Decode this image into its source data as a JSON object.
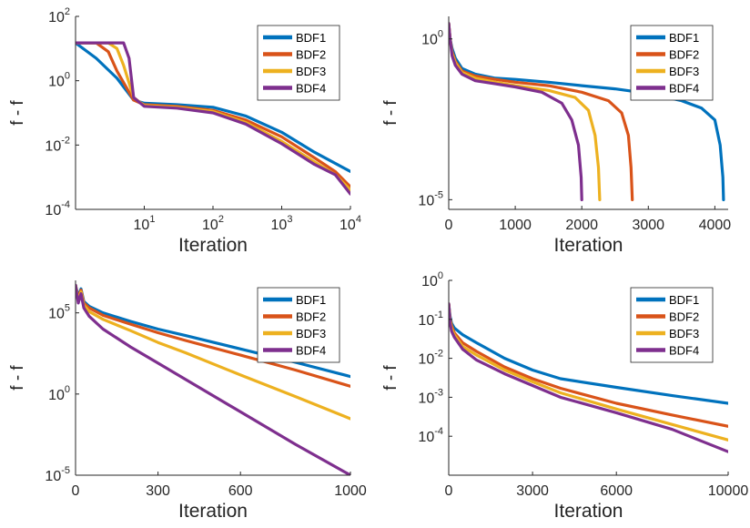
{
  "colors": {
    "BDF1": "#0072BD",
    "BDF2": "#D95319",
    "BDF3": "#EDB120",
    "BDF4": "#7E2F8E"
  },
  "chart_data": [
    {
      "type": "line",
      "xscale": "log",
      "yscale": "log",
      "xlabel": "Iteration",
      "ylabel": "f - f",
      "xlim": [
        1,
        10000
      ],
      "ylim": [
        0.0001,
        100
      ],
      "xticks": [
        {
          "v": 10,
          "base": "10",
          "exp": "1"
        },
        {
          "v": 100,
          "base": "10",
          "exp": "2"
        },
        {
          "v": 1000,
          "base": "10",
          "exp": "3"
        },
        {
          "v": 10000,
          "base": "10",
          "exp": "4"
        }
      ],
      "yticks": [
        {
          "v": 100,
          "base": "10",
          "exp": "2"
        },
        {
          "v": 1,
          "base": "10",
          "exp": "0"
        },
        {
          "v": 0.01,
          "base": "10",
          "exp": "-2"
        },
        {
          "v": 0.0001,
          "base": "10",
          "exp": "-4"
        }
      ],
      "legend": "top-right",
      "series": [
        {
          "name": "BDF1",
          "x": [
            1,
            2,
            4,
            7,
            10,
            30,
            100,
            300,
            1000,
            3000,
            10000
          ],
          "y": [
            15,
            5,
            1.2,
            0.25,
            0.2,
            0.18,
            0.15,
            0.08,
            0.025,
            0.006,
            0.0015
          ]
        },
        {
          "name": "BDF2",
          "x": [
            1,
            2,
            3,
            4,
            7,
            10,
            30,
            100,
            300,
            1000,
            3000,
            6000,
            10000
          ],
          "y": [
            15,
            15,
            8,
            2,
            0.25,
            0.18,
            0.16,
            0.12,
            0.06,
            0.018,
            0.004,
            0.0015,
            0.0005
          ]
        },
        {
          "name": "BDF3",
          "x": [
            1,
            2,
            3,
            4,
            5,
            7,
            10,
            30,
            100,
            300,
            1000,
            3000,
            6000,
            10000
          ],
          "y": [
            15,
            15,
            15,
            10,
            3,
            0.3,
            0.17,
            0.15,
            0.11,
            0.05,
            0.013,
            0.003,
            0.0012,
            0.0004
          ]
        },
        {
          "name": "BDF4",
          "x": [
            1,
            2,
            3,
            4,
            5,
            6,
            7,
            10,
            30,
            100,
            300,
            1000,
            3000,
            6000,
            10000
          ],
          "y": [
            15,
            15,
            15,
            15,
            15,
            5,
            0.3,
            0.16,
            0.14,
            0.1,
            0.045,
            0.011,
            0.0025,
            0.0012,
            0.0003
          ]
        }
      ]
    },
    {
      "type": "line",
      "xscale": "linear",
      "yscale": "log",
      "xlabel": "Iteration",
      "ylabel": "f - f",
      "xlim": [
        0,
        4200
      ],
      "ylim": [
        5e-06,
        5
      ],
      "xticks": [
        {
          "v": 0,
          "label": "0"
        },
        {
          "v": 1000,
          "label": "1000"
        },
        {
          "v": 2000,
          "label": "2000"
        },
        {
          "v": 3000,
          "label": "3000"
        },
        {
          "v": 4000,
          "label": "4000"
        }
      ],
      "yticks": [
        {
          "v": 1,
          "base": "10",
          "exp": "0"
        },
        {
          "v": 1e-05,
          "base": "10",
          "exp": "-5"
        }
      ],
      "legend": "top-right",
      "series": [
        {
          "name": "BDF1",
          "x": [
            0,
            20,
            50,
            100,
            200,
            400,
            700,
            1000,
            1500,
            2000,
            2500,
            3000,
            3500,
            3800,
            4000,
            4080,
            4120,
            4130
          ],
          "y": [
            3,
            1,
            0.5,
            0.25,
            0.12,
            0.08,
            0.06,
            0.055,
            0.045,
            0.035,
            0.028,
            0.02,
            0.012,
            0.007,
            0.003,
            0.0005,
            5e-05,
            1e-05
          ]
        },
        {
          "name": "BDF2",
          "x": [
            0,
            20,
            50,
            100,
            200,
            400,
            700,
            1000,
            1500,
            2000,
            2400,
            2600,
            2700,
            2740,
            2760
          ],
          "y": [
            3,
            1,
            0.4,
            0.2,
            0.1,
            0.07,
            0.055,
            0.045,
            0.035,
            0.022,
            0.012,
            0.005,
            0.001,
            0.0001,
            1e-05
          ]
        },
        {
          "name": "BDF3",
          "x": [
            0,
            20,
            50,
            100,
            200,
            400,
            700,
            1000,
            1500,
            1900,
            2100,
            2200,
            2250,
            2270
          ],
          "y": [
            3,
            1,
            0.35,
            0.18,
            0.09,
            0.06,
            0.045,
            0.035,
            0.025,
            0.015,
            0.006,
            0.001,
            0.0001,
            1e-05
          ]
        },
        {
          "name": "BDF4",
          "x": [
            0,
            20,
            50,
            100,
            200,
            400,
            700,
            1000,
            1400,
            1700,
            1850,
            1950,
            1990,
            2000
          ],
          "y": [
            3,
            1,
            0.3,
            0.15,
            0.08,
            0.05,
            0.04,
            0.032,
            0.022,
            0.01,
            0.003,
            0.0005,
            5e-05,
            1e-05
          ]
        }
      ]
    },
    {
      "type": "line",
      "xscale": "linear",
      "yscale": "log",
      "xlabel": "Iteration",
      "ylabel": "f - f",
      "xlim": [
        0,
        1000
      ],
      "ylim": [
        1e-05,
        10000000
      ],
      "xticks": [
        {
          "v": 0,
          "label": "0"
        },
        {
          "v": 300,
          "label": "300"
        },
        {
          "v": 600,
          "label": "600"
        },
        {
          "v": 1000,
          "label": "1000"
        }
      ],
      "yticks": [
        {
          "v": 100000,
          "base": "10",
          "exp": "5"
        },
        {
          "v": 1,
          "base": "10",
          "exp": "0"
        },
        {
          "v": 1e-05,
          "base": "10",
          "exp": "-5"
        }
      ],
      "legend": "top-right",
      "series": [
        {
          "name": "BDF1",
          "x": [
            0,
            10,
            20,
            30,
            50,
            100,
            200,
            300,
            400,
            600,
            800,
            1000
          ],
          "y": [
            5000000,
            1000000,
            3000000,
            500000,
            250000,
            100000,
            30000,
            10000,
            4000,
            600,
            90,
            12
          ]
        },
        {
          "name": "BDF2",
          "x": [
            0,
            10,
            20,
            30,
            50,
            100,
            200,
            300,
            400,
            600,
            800,
            1000
          ],
          "y": [
            5000000,
            800000,
            2500000,
            400000,
            200000,
            70000,
            20000,
            6000,
            2000,
            250,
            30,
            3
          ]
        },
        {
          "name": "BDF3",
          "x": [
            0,
            10,
            20,
            30,
            50,
            100,
            200,
            300,
            400,
            600,
            800,
            1000
          ],
          "y": [
            5000000,
            600000,
            2000000,
            300000,
            120000,
            40000,
            8000,
            1500,
            350,
            15,
            0.7,
            0.03
          ]
        },
        {
          "name": "BDF4",
          "x": [
            0,
            10,
            20,
            30,
            50,
            100,
            200,
            300,
            400,
            600,
            800,
            1000
          ],
          "y": [
            5000000,
            400000,
            1500000,
            200000,
            60000,
            10000,
            800,
            80,
            8,
            0.08,
            0.0008,
            1e-05
          ]
        }
      ]
    },
    {
      "type": "line",
      "xscale": "linear",
      "yscale": "log",
      "xlabel": "Iteration",
      "ylabel": "f - f",
      "xlim": [
        0,
        10000
      ],
      "ylim": [
        1e-05,
        1
      ],
      "xticks": [
        {
          "v": 0,
          "label": "0"
        },
        {
          "v": 3000,
          "label": "3000"
        },
        {
          "v": 6000,
          "label": "6000"
        },
        {
          "v": 10000,
          "label": "10000"
        }
      ],
      "yticks": [
        {
          "v": 1,
          "base": "10",
          "exp": "0"
        },
        {
          "v": 0.1,
          "base": "10",
          "exp": "-1"
        },
        {
          "v": 0.01,
          "base": "10",
          "exp": "-2"
        },
        {
          "v": 0.001,
          "base": "10",
          "exp": "-3"
        },
        {
          "v": 0.0001,
          "base": "10",
          "exp": "-4"
        }
      ],
      "legend": "top-right",
      "series": [
        {
          "name": "BDF1",
          "x": [
            0,
            50,
            100,
            200,
            500,
            1000,
            2000,
            3000,
            4000,
            6000,
            8000,
            10000
          ],
          "y": [
            0.25,
            0.12,
            0.08,
            0.06,
            0.04,
            0.025,
            0.01,
            0.005,
            0.003,
            0.0018,
            0.0011,
            0.0007
          ]
        },
        {
          "name": "BDF2",
          "x": [
            0,
            50,
            100,
            200,
            500,
            1000,
            2000,
            3000,
            4000,
            6000,
            8000,
            10000
          ],
          "y": [
            0.25,
            0.1,
            0.07,
            0.045,
            0.025,
            0.015,
            0.006,
            0.003,
            0.0017,
            0.0007,
            0.00035,
            0.00018
          ]
        },
        {
          "name": "BDF3",
          "x": [
            0,
            50,
            100,
            200,
            500,
            1000,
            2000,
            3000,
            4000,
            6000,
            8000,
            10000
          ],
          "y": [
            0.25,
            0.09,
            0.06,
            0.04,
            0.02,
            0.012,
            0.005,
            0.0025,
            0.0013,
            0.0005,
            0.0002,
            8e-05
          ]
        },
        {
          "name": "BDF4",
          "x": [
            0,
            50,
            100,
            200,
            500,
            1000,
            2000,
            3000,
            4000,
            6000,
            8000,
            10000
          ],
          "y": [
            0.25,
            0.08,
            0.05,
            0.035,
            0.017,
            0.009,
            0.004,
            0.002,
            0.001,
            0.0004,
            0.00015,
            4e-05
          ]
        }
      ]
    }
  ]
}
